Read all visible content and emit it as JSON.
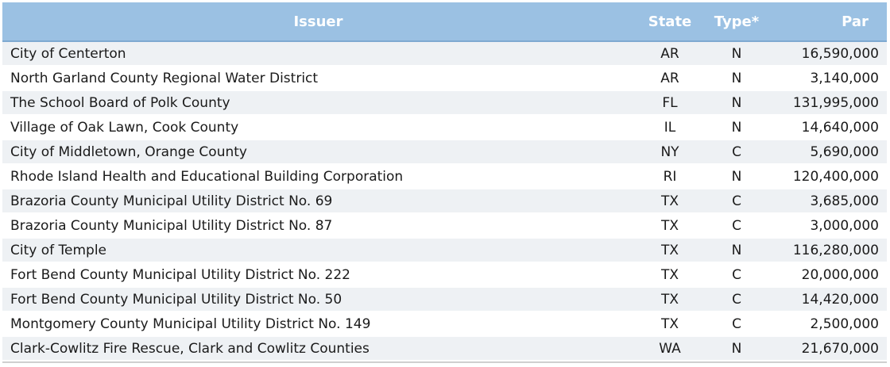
{
  "table": {
    "headers": {
      "issuer": "Issuer",
      "state": "State",
      "type": "Type*",
      "par": "Par"
    },
    "rows": [
      {
        "issuer": "City of Centerton",
        "state": "AR",
        "type": "N",
        "par": "16,590,000"
      },
      {
        "issuer": "North Garland County Regional Water District",
        "state": "AR",
        "type": "N",
        "par": "3,140,000"
      },
      {
        "issuer": "The School Board of Polk County",
        "state": "FL",
        "type": "N",
        "par": "131,995,000"
      },
      {
        "issuer": "Village of Oak Lawn, Cook County",
        "state": "IL",
        "type": "N",
        "par": "14,640,000"
      },
      {
        "issuer": "City of Middletown, Orange County",
        "state": "NY",
        "type": "C",
        "par": "5,690,000"
      },
      {
        "issuer": "Rhode Island Health and Educational Building Corporation",
        "state": "RI",
        "type": "N",
        "par": "120,400,000"
      },
      {
        "issuer": "Brazoria County Municipal Utility District No. 69",
        "state": "TX",
        "type": "C",
        "par": "3,685,000"
      },
      {
        "issuer": "Brazoria County Municipal Utility District No. 87",
        "state": "TX",
        "type": "C",
        "par": "3,000,000"
      },
      {
        "issuer": "City of Temple",
        "state": "TX",
        "type": "N",
        "par": "116,280,000"
      },
      {
        "issuer": "Fort Bend County Municipal Utility District No. 222",
        "state": "TX",
        "type": "C",
        "par": "20,000,000"
      },
      {
        "issuer": "Fort Bend County Municipal Utility District No. 50",
        "state": "TX",
        "type": "C",
        "par": "14,420,000"
      },
      {
        "issuer": "Montgomery County Municipal Utility District No. 149",
        "state": "TX",
        "type": "C",
        "par": "2,500,000"
      },
      {
        "issuer": "Clark-Cowlitz Fire Rescue, Clark and Cowlitz Counties",
        "state": "WA",
        "type": "N",
        "par": "21,670,000"
      }
    ]
  },
  "colors": {
    "header_bg": "#9bc1e3",
    "header_text": "#ffffff",
    "stripe_bg": "#eef1f4"
  }
}
